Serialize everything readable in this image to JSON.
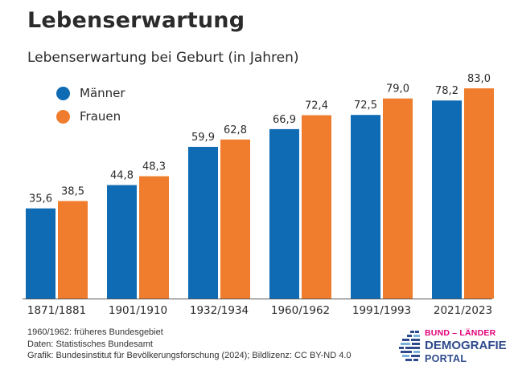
{
  "chart_data": {
    "type": "bar",
    "title": "Lebenserwartung",
    "subtitle": "Lebenserwartung bei Geburt (in Jahren)",
    "categories": [
      "1871/1881",
      "1901/1910",
      "1932/1934",
      "1960/1962",
      "1991/1993",
      "2021/2023"
    ],
    "series": [
      {
        "name": "Männer",
        "color": "#0f6bb3",
        "values": [
          35.6,
          44.8,
          59.9,
          66.9,
          72.5,
          78.2
        ],
        "labels": [
          "35,6",
          "44,8",
          "59,9",
          "66,9",
          "72,5",
          "78,2"
        ]
      },
      {
        "name": "Frauen",
        "color": "#ef7d2d",
        "values": [
          38.5,
          48.3,
          62.8,
          72.4,
          79.0,
          83.0
        ],
        "labels": [
          "38,5",
          "48,3",
          "62,8",
          "72,4",
          "79,0",
          "83,0"
        ]
      }
    ],
    "ylim": [
      0,
      90
    ],
    "xlabel": "",
    "ylabel": "",
    "legend_position": "top-left",
    "grid": false
  },
  "notes": [
    "1960/1962: früheres Bundesgebiet",
    "Daten: Statistisches Bundesamt",
    "Grafik: Bundesinstitut für Bevölkerungsforschung (2024); Bildlizenz: CC BY-ND 4.0"
  ],
  "logo": {
    "line1": "BUND – LÄNDER",
    "line2": "DEMOGRAFIE",
    "line3": "PORTAL"
  }
}
